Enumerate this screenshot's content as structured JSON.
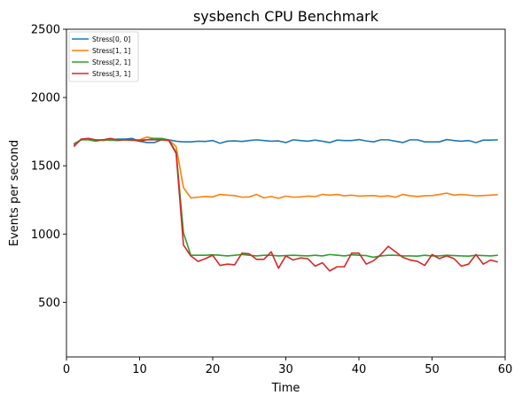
{
  "chart_data": {
    "type": "line",
    "title": "sysbench CPU Benchmark",
    "xlabel": "Time",
    "ylabel": "Events per second",
    "xlim": [
      0,
      60
    ],
    "ylim": [
      100,
      2500
    ],
    "xticks": [
      0,
      10,
      20,
      30,
      40,
      50,
      60
    ],
    "yticks": [
      500,
      1000,
      1500,
      2000,
      2500
    ],
    "grid": false,
    "legend_position": "top-left",
    "x": [
      1,
      2,
      3,
      4,
      5,
      6,
      7,
      8,
      9,
      10,
      11,
      12,
      13,
      14,
      15,
      16,
      17,
      18,
      19,
      20,
      21,
      22,
      23,
      24,
      25,
      26,
      27,
      28,
      29,
      30,
      31,
      32,
      33,
      34,
      35,
      36,
      37,
      38,
      39,
      40,
      41,
      42,
      43,
      44,
      45,
      46,
      47,
      48,
      49,
      50,
      51,
      52,
      53,
      54,
      55,
      56,
      57,
      58,
      59
    ],
    "series": [
      {
        "name": "Stress[0, 0]",
        "color": "#1f77b4",
        "values": [
          1650,
          1690,
          1695,
          1685,
          1690,
          1688,
          1695,
          1695,
          1700,
          1680,
          1670,
          1670,
          1690,
          1690,
          1680,
          1675,
          1675,
          1680,
          1678,
          1685,
          1665,
          1680,
          1682,
          1678,
          1685,
          1690,
          1685,
          1680,
          1682,
          1670,
          1690,
          1685,
          1680,
          1688,
          1680,
          1670,
          1688,
          1685,
          1685,
          1692,
          1682,
          1675,
          1690,
          1690,
          1680,
          1670,
          1690,
          1690,
          1675,
          1675,
          1675,
          1692,
          1685,
          1680,
          1685,
          1670,
          1688,
          1688,
          1690
        ]
      },
      {
        "name": "Stress[1, 1]",
        "color": "#ff7f0e",
        "values": [
          1655,
          1690,
          1695,
          1690,
          1685,
          1690,
          1688,
          1690,
          1685,
          1690,
          1710,
          1700,
          1690,
          1690,
          1640,
          1340,
          1265,
          1270,
          1275,
          1272,
          1290,
          1285,
          1282,
          1270,
          1272,
          1290,
          1265,
          1275,
          1262,
          1278,
          1270,
          1272,
          1278,
          1275,
          1290,
          1285,
          1290,
          1280,
          1285,
          1278,
          1280,
          1282,
          1275,
          1280,
          1270,
          1290,
          1280,
          1275,
          1280,
          1282,
          1290,
          1300,
          1285,
          1290,
          1285,
          1280,
          1282,
          1285,
          1288
        ]
      },
      {
        "name": "Stress[2, 1]",
        "color": "#2ca02c",
        "values": [
          1660,
          1690,
          1690,
          1680,
          1690,
          1688,
          1685,
          1690,
          1688,
          1690,
          1690,
          1700,
          1700,
          1690,
          1600,
          1010,
          845,
          845,
          845,
          848,
          845,
          840,
          845,
          850,
          845,
          840,
          845,
          845,
          840,
          842,
          845,
          842,
          840,
          845,
          840,
          850,
          845,
          840,
          848,
          845,
          842,
          830,
          840,
          845,
          845,
          840,
          840,
          838,
          845,
          840,
          840,
          845,
          842,
          840,
          838,
          845,
          842,
          840,
          845
        ]
      },
      {
        "name": "Stress[3, 1]",
        "color": "#d62728",
        "values": [
          1640,
          1695,
          1700,
          1690,
          1690,
          1700,
          1690,
          1690,
          1690,
          1680,
          1690,
          1690,
          1690,
          1685,
          1590,
          920,
          840,
          800,
          820,
          845,
          770,
          780,
          775,
          860,
          855,
          815,
          815,
          870,
          750,
          840,
          810,
          825,
          820,
          765,
          790,
          730,
          760,
          760,
          860,
          860,
          780,
          805,
          850,
          910,
          870,
          830,
          810,
          800,
          770,
          850,
          820,
          840,
          820,
          765,
          780,
          850,
          780,
          810,
          795
        ]
      }
    ]
  }
}
